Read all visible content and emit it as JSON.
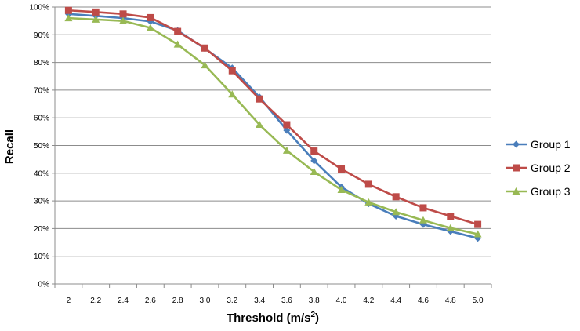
{
  "chart_data": {
    "type": "line",
    "xlabel": "Threshold  (m/s",
    "xlabel_sup": "2",
    "xlabel_close": ")",
    "ylabel": "Recall",
    "categories": [
      "2",
      "2.2",
      "2.4",
      "2.6",
      "2.8",
      "3.0",
      "3.2",
      "3.4",
      "3.6",
      "3.8",
      "4.0",
      "4.2",
      "4.4",
      "4.6",
      "4.8",
      "5.0"
    ],
    "y_ticks": [
      "0%",
      "10%",
      "20%",
      "30%",
      "40%",
      "50%",
      "60%",
      "70%",
      "80%",
      "90%",
      "100%"
    ],
    "ylim": [
      0,
      100
    ],
    "grid": true,
    "legend_position": "right",
    "series": [
      {
        "name": "Group 1",
        "color": "#4a7ebb",
        "marker": "diamond",
        "values": [
          97.5,
          96.8,
          96.0,
          94.8,
          91.5,
          85.0,
          78.0,
          67.5,
          55.5,
          44.5,
          35.0,
          29.0,
          24.5,
          21.5,
          19.0,
          16.5
        ]
      },
      {
        "name": "Group 2",
        "color": "#be4b48",
        "marker": "square",
        "values": [
          98.8,
          98.2,
          97.5,
          96.2,
          91.2,
          85.2,
          77.0,
          66.8,
          57.5,
          48.0,
          41.5,
          36.0,
          31.5,
          27.5,
          24.5,
          21.5
        ]
      },
      {
        "name": "Group 3",
        "color": "#98b954",
        "marker": "triangle",
        "values": [
          96.0,
          95.5,
          95.0,
          92.5,
          86.5,
          79.0,
          68.5,
          57.5,
          48.2,
          40.5,
          34.0,
          29.5,
          26.0,
          23.0,
          20.2,
          18.0
        ]
      }
    ]
  }
}
